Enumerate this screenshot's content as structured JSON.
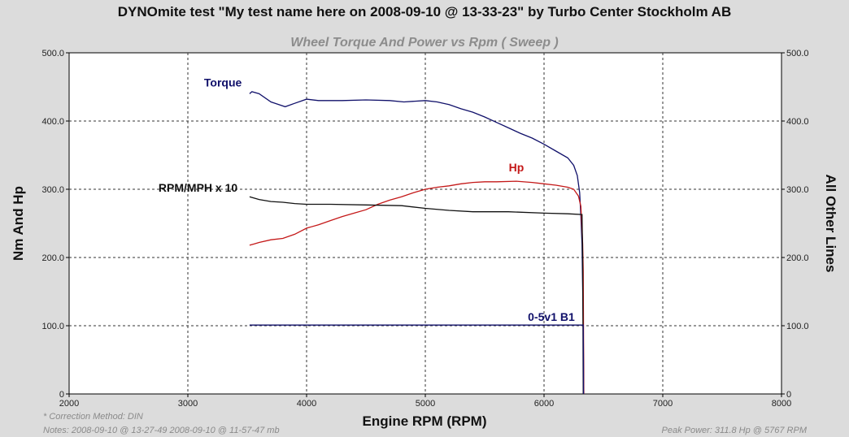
{
  "header": {
    "title": "DYNOmite test \"My test name here on 2008-09-10 @ 13-33-23\" by Turbo Center Stockholm AB",
    "subtitle": "Wheel Torque And Power vs Rpm ( Sweep )"
  },
  "footer": {
    "correction": "* Correction Method: DIN",
    "notes": "Notes: 2008-09-10 @ 13-27-49 2008-09-10 @ 11-57-47 mb",
    "peak_power": "Peak Power: 311.8 Hp @ 5767 RPM"
  },
  "chart_data": {
    "type": "line",
    "title": "Wheel Torque And Power vs Rpm ( Sweep )",
    "xlabel": "Engine RPM (RPM)",
    "ylabel": "Nm And Hp",
    "y2label": "All Other Lines",
    "xlim": [
      2000,
      8000
    ],
    "ylim": [
      0,
      500
    ],
    "y2lim": [
      0,
      500
    ],
    "x_ticks": [
      "2000",
      "3000",
      "4000",
      "5000",
      "6000",
      "7000",
      "8000"
    ],
    "y_ticks": [
      "0",
      "100.0",
      "200.0",
      "300.0",
      "400.0",
      "500.0"
    ],
    "y2_ticks": [
      "0",
      "100.0",
      "200.0",
      "300.0",
      "400.0",
      "500.0"
    ],
    "grid": true,
    "colors": {
      "plot_bg": "#ffffff",
      "page_bg": "#dcdcdc",
      "grid": "#333333"
    },
    "series": [
      {
        "name": "Torque",
        "color": "#10106a",
        "points": [
          [
            3520,
            440
          ],
          [
            3540,
            443
          ],
          [
            3600,
            440
          ],
          [
            3700,
            428
          ],
          [
            3820,
            421
          ],
          [
            3900,
            426
          ],
          [
            4000,
            432
          ],
          [
            4100,
            430
          ],
          [
            4300,
            430
          ],
          [
            4500,
            431
          ],
          [
            4700,
            430
          ],
          [
            4820,
            428
          ],
          [
            5000,
            430
          ],
          [
            5100,
            428
          ],
          [
            5200,
            424
          ],
          [
            5300,
            418
          ],
          [
            5400,
            413
          ],
          [
            5500,
            406
          ],
          [
            5600,
            398
          ],
          [
            5700,
            390
          ],
          [
            5800,
            382
          ],
          [
            5900,
            375
          ],
          [
            6000,
            366
          ],
          [
            6100,
            356
          ],
          [
            6200,
            346
          ],
          [
            6250,
            335
          ],
          [
            6280,
            320
          ],
          [
            6300,
            295
          ],
          [
            6310,
            260
          ],
          [
            6320,
            220
          ],
          [
            6330,
            100
          ],
          [
            6335,
            0
          ]
        ]
      },
      {
        "name": "Hp",
        "color": "#c41818",
        "points": [
          [
            3520,
            218
          ],
          [
            3560,
            220
          ],
          [
            3600,
            222
          ],
          [
            3700,
            226
          ],
          [
            3800,
            228
          ],
          [
            3900,
            234
          ],
          [
            4000,
            243
          ],
          [
            4100,
            248
          ],
          [
            4200,
            254
          ],
          [
            4300,
            260
          ],
          [
            4400,
            265
          ],
          [
            4500,
            270
          ],
          [
            4600,
            278
          ],
          [
            4700,
            284
          ],
          [
            4800,
            289
          ],
          [
            4900,
            295
          ],
          [
            5000,
            300
          ],
          [
            5100,
            303
          ],
          [
            5200,
            305
          ],
          [
            5300,
            308
          ],
          [
            5400,
            310
          ],
          [
            5500,
            311
          ],
          [
            5600,
            311
          ],
          [
            5767,
            311.8
          ],
          [
            5900,
            310
          ],
          [
            6000,
            308
          ],
          [
            6100,
            306
          ],
          [
            6200,
            303
          ],
          [
            6250,
            300
          ],
          [
            6290,
            290
          ],
          [
            6310,
            275
          ],
          [
            6325,
            220
          ],
          [
            6330,
            180
          ],
          [
            6335,
            0
          ]
        ]
      },
      {
        "name": "RPM/MPH x 10",
        "color": "#111111",
        "points": [
          [
            3520,
            289
          ],
          [
            3600,
            285
          ],
          [
            3700,
            282
          ],
          [
            3800,
            281
          ],
          [
            3900,
            279
          ],
          [
            4000,
            278
          ],
          [
            4200,
            278
          ],
          [
            4500,
            277
          ],
          [
            4800,
            276
          ],
          [
            5000,
            272
          ],
          [
            5200,
            269
          ],
          [
            5400,
            267
          ],
          [
            5700,
            267
          ],
          [
            6000,
            265
          ],
          [
            6200,
            264
          ],
          [
            6320,
            263
          ],
          [
            6325,
            200
          ],
          [
            6330,
            0
          ]
        ]
      },
      {
        "name": "0-5v1 B1",
        "color": "#10106a",
        "points": [
          [
            3520,
            101
          ],
          [
            4000,
            101
          ],
          [
            5000,
            101
          ],
          [
            6000,
            101
          ],
          [
            6300,
            101
          ],
          [
            6330,
            101
          ],
          [
            6333,
            0
          ]
        ]
      }
    ],
    "annotations": [
      {
        "text": "Torque",
        "series": "Torque"
      },
      {
        "text": "Hp",
        "series": "Hp"
      },
      {
        "text": "RPM/MPH x 10",
        "series": "RPM/MPH x 10"
      },
      {
        "text": "0-5v1 B1",
        "series": "0-5v1 B1"
      }
    ]
  }
}
